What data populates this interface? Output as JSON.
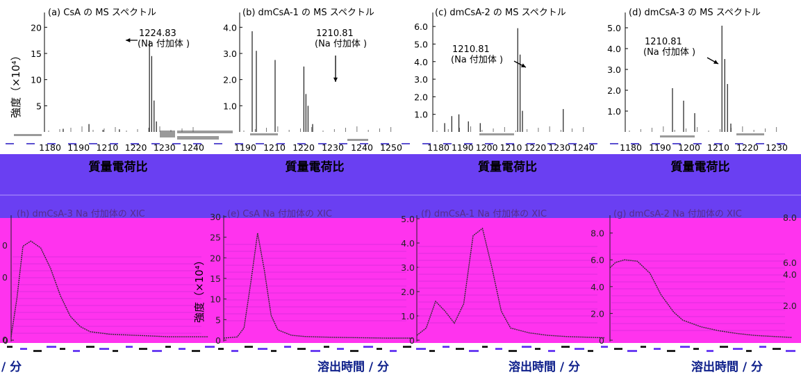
{
  "colors": {
    "band": "#6a3ff2",
    "magenta": "#ff33ee",
    "trace": "#2c2c2c",
    "label_dark_blue": "#0d1f8a"
  },
  "top_ylabel": "強度（×10⁴）",
  "bottom_ylabel": "強度（×10⁴）",
  "chart_data": [
    {
      "type": "bar",
      "title": "(a) CsA の MS スペクトル",
      "xlabel": "質量電荷比",
      "ylim": [
        0,
        21.5
      ],
      "yticks": [
        "20",
        "15",
        "10",
        "5"
      ],
      "yticks_values": [
        20,
        15,
        10,
        5
      ],
      "xticks": [
        "1180",
        "1190",
        "1210",
        "1220",
        "1230",
        "1240"
      ],
      "xlim": [
        1180,
        1250
      ],
      "annotation": {
        "lines": [
          "1224.83",
          "(Na 付加体 )"
        ],
        "x": 1224.83,
        "y": 17.5
      },
      "peaks": {
        "x": [
          1188,
          1199,
          1205,
          1212,
          1224.83,
          1225.8,
          1226.8,
          1227.8
        ],
        "values": [
          0.6,
          1.5,
          0.4,
          0.5,
          17.5,
          14.5,
          6,
          2
        ]
      }
    },
    {
      "type": "bar",
      "title": "(b) dmCsA-1 の MS スペクトル",
      "xlabel": "質量電荷比",
      "ylim": [
        0,
        4.3
      ],
      "yticks": [
        "4.0",
        "3.0",
        "2.0",
        "1.0"
      ],
      "yticks_values": [
        4,
        3,
        2,
        1
      ],
      "xticks": [
        "1190",
        "1210",
        "1220",
        "1230",
        "1240",
        "1250"
      ],
      "xlim": [
        1180,
        1260
      ],
      "annotation": {
        "lines": [
          "1210.81",
          "(Na 付加体 )"
        ],
        "x": 1210.81,
        "y": 2.5
      },
      "peaks": {
        "x": [
          1186,
          1188,
          1197,
          1210.81,
          1211.8,
          1212.8,
          1215
        ],
        "values": [
          3.85,
          3.1,
          2.75,
          2.5,
          1.45,
          1.0,
          0.3
        ]
      }
    },
    {
      "type": "bar",
      "title": "(c) dmCsA-2 の MS スペクトル",
      "xlabel": "質量電荷比",
      "ylim": [
        0,
        6.4
      ],
      "yticks": [
        "6.0",
        "5.0",
        "4.0",
        "3.0",
        "2.0",
        "1.0"
      ],
      "yticks_values": [
        6,
        5,
        4,
        3,
        2,
        1
      ],
      "xticks": [
        "1180",
        "1190",
        "1200",
        "1210",
        "1220",
        "1230",
        "1240"
      ],
      "xlim": [
        1175,
        1245
      ],
      "annotation": {
        "lines": [
          "1210.81",
          "(Na 付加体 )"
        ],
        "x": 1210.81,
        "y": 3.9
      },
      "peaks": {
        "x": [
          1180,
          1183,
          1186,
          1190,
          1195,
          1210.81,
          1211.8,
          1212.8,
          1230
        ],
        "values": [
          0.5,
          0.9,
          1.0,
          0.6,
          0.5,
          5.9,
          4.4,
          1.2,
          1.3
        ]
      }
    },
    {
      "type": "bar",
      "title": "(d) dmCsA-3 の MS スペクトル",
      "xlabel": "質量電荷比",
      "ylim": [
        0,
        5.4
      ],
      "yticks": [
        "5.0",
        "4.0",
        "3.0",
        "2.0",
        "1.0"
      ],
      "yticks_values": [
        5,
        4,
        3,
        2,
        1
      ],
      "xticks": [
        "1180",
        "1190",
        "1200",
        "1210",
        "1220",
        "1230"
      ],
      "xlim": [
        1175,
        1235
      ],
      "annotation": {
        "lines": [
          "1210.81",
          "(Na 付加体 )"
        ],
        "x": 1210.81,
        "y": 3.4
      },
      "peaks": {
        "x": [
          1192,
          1196,
          1200,
          1209.8,
          1210.81,
          1211.8,
          1213
        ],
        "values": [
          2.1,
          1.5,
          0.9,
          5.1,
          3.5,
          2.3,
          0.4
        ]
      }
    },
    {
      "type": "line",
      "title": "(h) dmCsA-3 Na 付加体の XIC",
      "xlabel": "分",
      "ylim": [
        0,
        6.5
      ],
      "yticks": [
        "0"
      ],
      "yticks_values": [
        0
      ],
      "x": [
        0,
        0.3,
        0.6,
        1,
        1.5,
        2,
        2.5,
        3,
        3.5,
        4,
        5,
        6,
        7,
        8,
        10
      ],
      "values": [
        0.2,
        2.5,
        5.5,
        5.8,
        5.4,
        4.2,
        2.6,
        1.4,
        0.8,
        0.5,
        0.35,
        0.3,
        0.25,
        0.2,
        0.2
      ],
      "xlim": [
        0,
        10
      ]
    },
    {
      "type": "line",
      "title": "(e) CsA Na 付加体の XIC",
      "xlabel": "溶出時間 / 分",
      "ylim": [
        0,
        30
      ],
      "yticks": [
        "30",
        "25",
        "20",
        "15",
        "10",
        "5",
        "0"
      ],
      "yticks_values": [
        30,
        25,
        20,
        15,
        10,
        5,
        0
      ],
      "x": [
        0,
        1,
        1.5,
        2,
        2.5,
        3,
        3.5,
        4,
        5,
        6,
        7,
        8,
        10,
        12,
        14
      ],
      "values": [
        0.5,
        0.8,
        3,
        14,
        26,
        17,
        6,
        2.5,
        1.2,
        0.9,
        0.8,
        0.7,
        0.6,
        0.5,
        0.5
      ],
      "xlim": [
        0,
        14
      ]
    },
    {
      "type": "line",
      "title": "(f) dmCsA-1 Na 付加体の XIC",
      "xlabel": "溶出時間 / 分",
      "ylim": [
        0,
        5
      ],
      "yticks": [
        "5.0",
        "4.0",
        "3.0",
        "2.0",
        "1.0",
        "0"
      ],
      "yticks_values": [
        5,
        4,
        3,
        2,
        1,
        0
      ],
      "x": [
        0,
        0.5,
        1,
        1.5,
        2,
        2.5,
        3,
        3.5,
        4,
        4.5,
        5,
        6,
        7,
        8,
        10
      ],
      "values": [
        0.2,
        0.5,
        1.6,
        1.2,
        0.7,
        1.5,
        4.3,
        4.6,
        3.0,
        1.2,
        0.5,
        0.3,
        0.2,
        0.15,
        0.1
      ],
      "xlim": [
        0,
        10
      ]
    },
    {
      "type": "line",
      "title": "(g) dmCsA-2 Na 付加体の XIC",
      "xlabel": "溶出時間 / 分",
      "ylim": [
        0,
        8.5
      ],
      "yticks": [
        "8.0",
        "6.0",
        "4.0",
        "2.0",
        "0"
      ],
      "yticks_values": [
        8,
        6,
        4,
        2,
        0
      ],
      "x": [
        0,
        0.3,
        0.8,
        1.5,
        2.2,
        2.8,
        3.5,
        4,
        5,
        6,
        7,
        8,
        10
      ],
      "values": [
        5.4,
        5.8,
        6.0,
        5.9,
        5.0,
        3.4,
        2.1,
        1.5,
        1.0,
        0.7,
        0.5,
        0.35,
        0.2
      ],
      "xlim": [
        0,
        10
      ]
    }
  ],
  "right_edge_ticks": [
    "8.0",
    "6.0",
    "4.0",
    "2.0"
  ],
  "left_edge_ticks": [
    "0",
    "0",
    "0"
  ],
  "left_edge_xlabel": "/ 分"
}
